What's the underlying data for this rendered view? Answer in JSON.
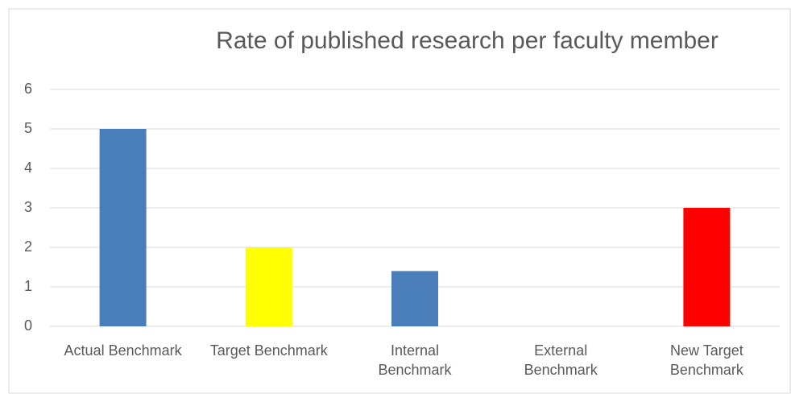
{
  "chart_data": {
    "type": "bar",
    "title": "Rate of published research per faculty member",
    "categories": [
      "Actual Benchmark",
      "Target Benchmark",
      "Internal\nBenchmark",
      "External\nBenchmark",
      "New Target\nBenchmark"
    ],
    "values": [
      5,
      2,
      1.4,
      0,
      3
    ],
    "colors": [
      "#4a7ebb",
      "#ffff00",
      "#4a7ebb",
      null,
      "#ff0000"
    ],
    "ylim": [
      0,
      6
    ],
    "yticks": [
      0,
      1,
      2,
      3,
      4,
      5,
      6
    ],
    "grid": true
  }
}
